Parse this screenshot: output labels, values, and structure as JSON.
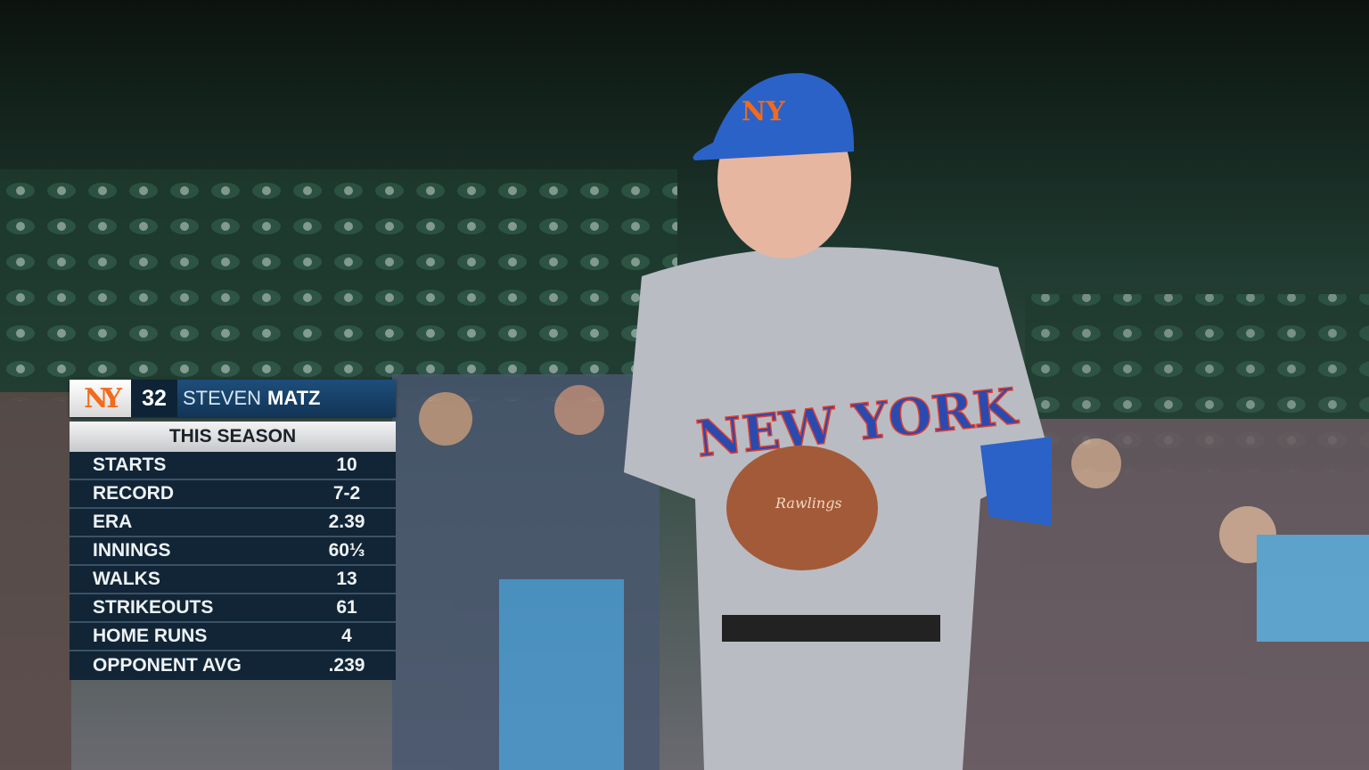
{
  "scene": {
    "jersey_text": "NEW YORK",
    "glove_text": "Rawlings"
  },
  "graphic": {
    "team_logo": "NY",
    "number": "32",
    "first_name": "STEVEN",
    "last_name": "MATZ",
    "section": "THIS SEASON",
    "stats": [
      {
        "label": "STARTS",
        "value": "10"
      },
      {
        "label": "RECORD",
        "value": "7-2"
      },
      {
        "label": "ERA",
        "value": "2.39"
      },
      {
        "label": "INNINGS",
        "value": "60⅓"
      },
      {
        "label": "WALKS",
        "value": "13"
      },
      {
        "label": "STRIKEOUTS",
        "value": "61"
      },
      {
        "label": "HOME RUNS",
        "value": "4"
      },
      {
        "label": "OPPONENT AVG",
        "value": ".239"
      }
    ],
    "colors": {
      "mets_orange": "#f26a1b",
      "mets_blue": "#1d4e7a",
      "panel": "#112536"
    }
  }
}
